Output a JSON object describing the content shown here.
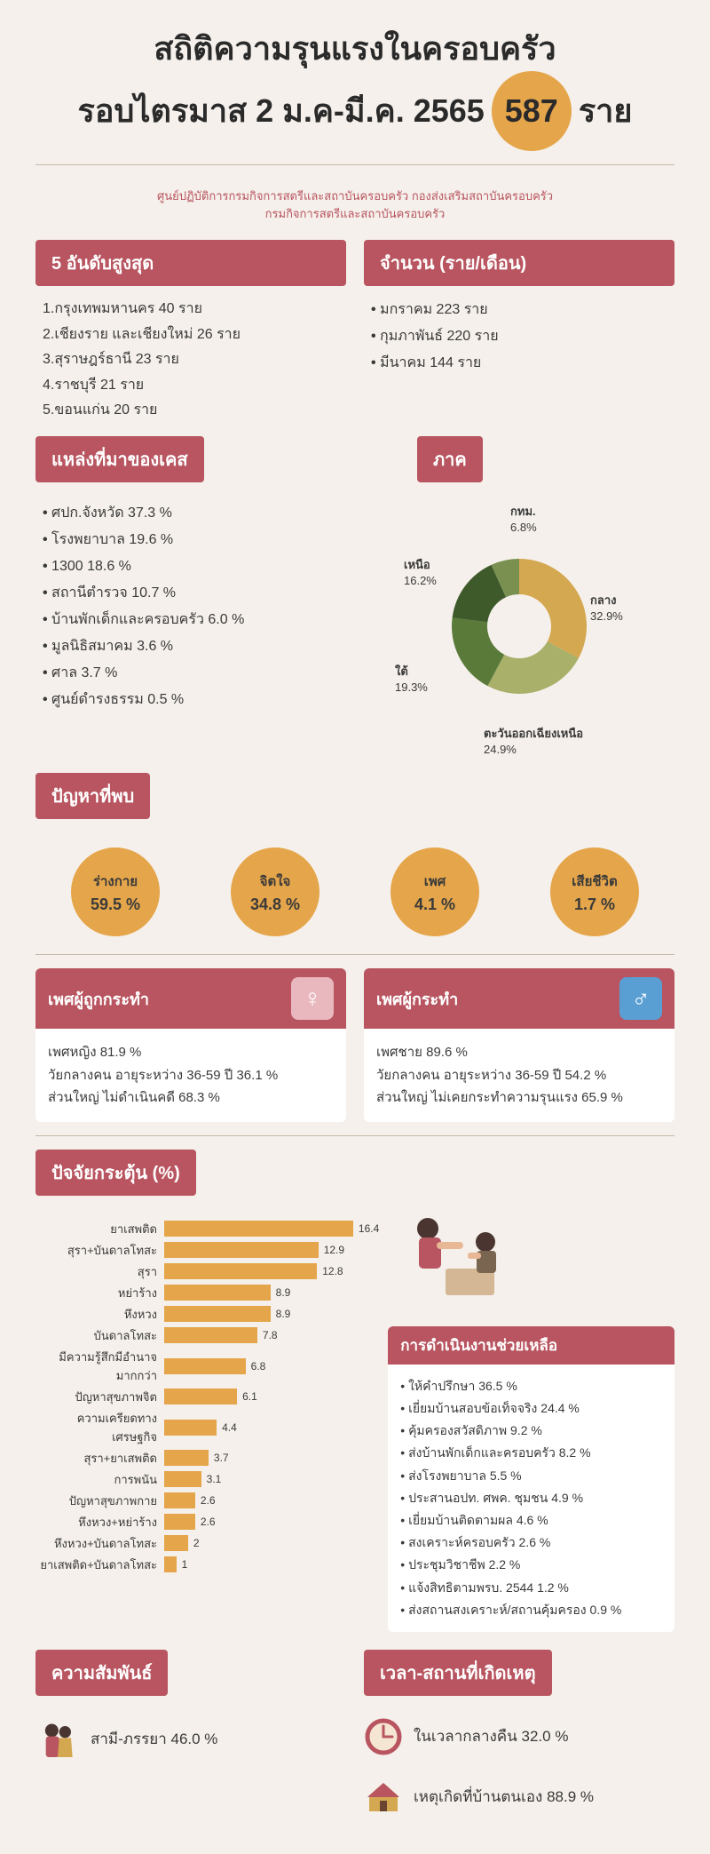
{
  "colors": {
    "accent": "#b85560",
    "gold": "#e5a54a",
    "bg": "#f5f0eb",
    "text": "#3a3a3a"
  },
  "title": {
    "line1": "สถิติความรุนแรงในครอบครัว",
    "line2_pre": "รอบไตรมาส 2 ม.ค-มี.ค. 2565",
    "count": "587",
    "line2_post": "ราย"
  },
  "subtitle": "ศูนย์ปฏิบัติการกรมกิจการสตรีและสถาบันครอบครัว กองส่งเสริมสถาบันครอบครัว\nกรมกิจการสตรีและสถาบันครอบครัว",
  "top5": {
    "header": "5 อันดับสูงสุด",
    "items": [
      "1.กรุงเทพมหานคร 40 ราย",
      "2.เชียงราย และเชียงใหม่ 26 ราย",
      "3.สุราษฎร์ธานี 23  ราย",
      "4.ราชบุรี 21 ราย",
      "5.ขอนแก่น 20 ราย"
    ]
  },
  "monthly": {
    "header": "จำนวน (ราย/เดือน)",
    "items": [
      "มกราคม 223 ราย",
      "กุมภาพันธ์ 220 ราย",
      "มีนาคม 144 ราย"
    ]
  },
  "sources": {
    "header": "แหล่งที่มาของเคส",
    "items": [
      "ศปก.จังหวัด      37.3 %",
      "โรงพยาบาล       19.6  %",
      "1300                18.6 %",
      "สถานีตำรวจ      10.7 %",
      "บ้านพักเด็กและครอบครัว 6.0 %",
      "มูลนิธิสมาคม     3.6 %",
      "ศาล                   3.7 %",
      "ศูนย์ดำรงธรรม   0.5 %"
    ]
  },
  "region": {
    "header": "ภาค",
    "slices": [
      {
        "label": "กลาง",
        "value": 32.9,
        "color": "#d4a850"
      },
      {
        "label": "ตะวันออกเฉียงเหนือ",
        "value": 24.9,
        "color": "#a8b06a"
      },
      {
        "label": "ใต้",
        "value": 19.3,
        "color": "#5a7a3a"
      },
      {
        "label": "เหนือ",
        "value": 16.2,
        "color": "#3e5a2a"
      },
      {
        "label": "กทม.",
        "value": 6.8,
        "color": "#7a9050"
      }
    ]
  },
  "problems": {
    "header": "ปัญหาที่พบ",
    "items": [
      {
        "label": "ร่างกาย",
        "value": "59.5 %"
      },
      {
        "label": "จิตใจ",
        "value": "34.8 %"
      },
      {
        "label": "เพศ",
        "value": "4.1 %"
      },
      {
        "label": "เสียชีวิต",
        "value": "1.7 %"
      }
    ]
  },
  "victim": {
    "header": "เพศผู้ถูกกระทำ",
    "lines": [
      "เพศหญิง 81.9 %",
      "วัยกลางคน อายุระหว่าง 36-59 ปี 36.1 %",
      "ส่วนใหญ่ ไม่ดำเนินคดี 68.3 %"
    ],
    "symbol": "♀"
  },
  "perpetrator": {
    "header": "เพศผู้กระทำ",
    "lines": [
      "เพศชาย  89.6 %",
      "วัยกลางคน อายุระหว่าง 36-59 ปี   54.2 %",
      "ส่วนใหญ่ ไม่เคยกระทำความรุนแรง 65.9 %"
    ],
    "symbol": "♂"
  },
  "factors": {
    "header": "ปัจจัยกระตุ้น (%)",
    "max": 18,
    "bars": [
      {
        "label": "ยาเสพติด",
        "value": 16.4
      },
      {
        "label": "สุรา+บันดาลโทสะ",
        "value": 12.9
      },
      {
        "label": "สุรา",
        "value": 12.8
      },
      {
        "label": "หย่าร้าง",
        "value": 8.9
      },
      {
        "label": "หึงหวง",
        "value": 8.9
      },
      {
        "label": "บันดาลโทสะ",
        "value": 7.8
      },
      {
        "label": "มีความรู้สึกมีอำนาจมากกว่า",
        "value": 6.8
      },
      {
        "label": "ปัญหาสุขภาพจิต",
        "value": 6.1
      },
      {
        "label": "ความเครียดทางเศรษฐกิจ",
        "value": 4.4
      },
      {
        "label": "สุรา+ยาเสพติด",
        "value": 3.7
      },
      {
        "label": "การพนัน",
        "value": 3.1
      },
      {
        "label": "ปัญหาสุขภาพกาย",
        "value": 2.6
      },
      {
        "label": "หึงหวง+หย่าร้าง",
        "value": 2.6
      },
      {
        "label": "หึงหวง+บันดาลโทสะ",
        "value": 2.0
      },
      {
        "label": "ยาเสพติด+บันดาลโทสะ",
        "value": 1.0
      }
    ]
  },
  "assistance": {
    "header": "การดำเนินงานช่วยเหลือ",
    "items": [
      "ให้คำปรึกษา                       36.5 %",
      "เยี่ยมบ้านสอบข้อเท็จจริง    24.4 %",
      "คุ้มครองสวัสดิภาพ              9.2 %",
      "ส่งบ้านพักเด็กและครอบครัว 8.2 %",
      "ส่งโรงพยาบาล                    5.5 %",
      "ประสานอปท. ศพค. ชุมชน    4.9 %",
      "เยี่ยมบ้านติดตามผล             4.6 %",
      "สงเคราะห์ครอบครัว            2.6 %",
      "ประชุมวิชาชีพ                     2.2 %",
      "แจ้งสิทธิตามพรบ.  2544      1.2 %",
      "ส่งสถานสงเคราะห์/สถานคุ้มครอง 0.9 %"
    ]
  },
  "relationship": {
    "header": "ความสัมพันธ์",
    "text": "สามี-ภรรยา 46.0 %"
  },
  "timeplace": {
    "header": "เวลา-สถานที่เกิดเหตุ",
    "time": "ในเวลากลางคืน 32.0 %",
    "place": "เหตุเกิดที่บ้านตนเอง 88.9 %"
  }
}
